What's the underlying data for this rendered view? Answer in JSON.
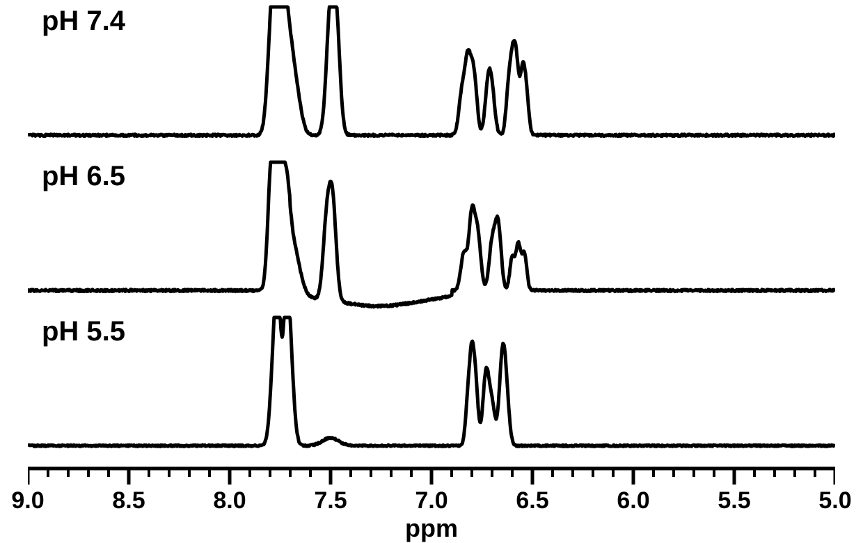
{
  "chart": {
    "type": "nmr-stacked-spectra",
    "background_color": "#ffffff",
    "line_color": "#000000",
    "line_width": 5,
    "label_fontsize": 40,
    "label_fontweight": "bold",
    "tick_fontsize": 34,
    "axis_title_fontsize": 36,
    "x_axis": {
      "label": "ppm",
      "min": 5.0,
      "max": 9.0,
      "ticks": [
        9.0,
        8.5,
        8.0,
        7.5,
        7.0,
        6.5,
        6.0,
        5.5,
        5.0
      ],
      "tick_labels": [
        "9.0",
        "8.5",
        "8.0",
        "7.5",
        "7.0",
        "6.5",
        "6.0",
        "5.5",
        "5.0"
      ],
      "minor_ticks_per_interval": 4
    },
    "spectra": [
      {
        "label": "pH 7.4",
        "baseline": 0.02,
        "noise": 0.015,
        "peaks": [
          {
            "ppm": 7.8,
            "h": 0.55,
            "w": 0.018
          },
          {
            "ppm": 7.78,
            "h": 0.8,
            "w": 0.015
          },
          {
            "ppm": 7.76,
            "h": 0.6,
            "w": 0.015
          },
          {
            "ppm": 7.73,
            "h": 0.88,
            "w": 0.018
          },
          {
            "ppm": 7.7,
            "h": 0.45,
            "w": 0.02
          },
          {
            "ppm": 7.67,
            "h": 0.3,
            "w": 0.025
          },
          {
            "ppm": 7.5,
            "h": 0.95,
            "w": 0.02
          },
          {
            "ppm": 7.47,
            "h": 0.7,
            "w": 0.018
          },
          {
            "ppm": 6.85,
            "h": 0.3,
            "w": 0.015
          },
          {
            "ppm": 6.82,
            "h": 0.55,
            "w": 0.015
          },
          {
            "ppm": 6.79,
            "h": 0.45,
            "w": 0.015
          },
          {
            "ppm": 6.72,
            "h": 0.35,
            "w": 0.015
          },
          {
            "ppm": 6.7,
            "h": 0.28,
            "w": 0.015
          },
          {
            "ppm": 6.62,
            "h": 0.3,
            "w": 0.012
          },
          {
            "ppm": 6.6,
            "h": 0.48,
            "w": 0.012
          },
          {
            "ppm": 6.58,
            "h": 0.52,
            "w": 0.012
          },
          {
            "ppm": 6.55,
            "h": 0.45,
            "w": 0.012
          },
          {
            "ppm": 6.53,
            "h": 0.3,
            "w": 0.012
          }
        ]
      },
      {
        "label": "pH 6.5",
        "baseline": 0.02,
        "noise": 0.015,
        "baseline_dip": {
          "from": 7.7,
          "to": 6.9,
          "depth": -0.08
        },
        "peaks": [
          {
            "ppm": 7.8,
            "h": 0.6,
            "w": 0.015
          },
          {
            "ppm": 7.78,
            "h": 0.78,
            "w": 0.015
          },
          {
            "ppm": 7.75,
            "h": 0.85,
            "w": 0.015
          },
          {
            "ppm": 7.72,
            "h": 0.55,
            "w": 0.018
          },
          {
            "ppm": 7.69,
            "h": 0.4,
            "w": 0.035,
            "shape": "shoulder"
          },
          {
            "ppm": 7.52,
            "h": 0.55,
            "w": 0.018
          },
          {
            "ppm": 7.49,
            "h": 0.72,
            "w": 0.018
          },
          {
            "ppm": 7.25,
            "h": -0.04,
            "w": 0.15
          },
          {
            "ppm": 6.84,
            "h": 0.28,
            "w": 0.015
          },
          {
            "ppm": 6.8,
            "h": 0.58,
            "w": 0.015
          },
          {
            "ppm": 6.77,
            "h": 0.4,
            "w": 0.015
          },
          {
            "ppm": 6.7,
            "h": 0.35,
            "w": 0.015
          },
          {
            "ppm": 6.67,
            "h": 0.5,
            "w": 0.015
          },
          {
            "ppm": 6.6,
            "h": 0.25,
            "w": 0.012
          },
          {
            "ppm": 6.57,
            "h": 0.35,
            "w": 0.012
          },
          {
            "ppm": 6.54,
            "h": 0.28,
            "w": 0.012
          }
        ]
      },
      {
        "label": "pH 5.5",
        "baseline": 0.02,
        "noise": 0.012,
        "peaks": [
          {
            "ppm": 7.78,
            "h": 0.62,
            "w": 0.018
          },
          {
            "ppm": 7.76,
            "h": 0.88,
            "w": 0.015
          },
          {
            "ppm": 7.72,
            "h": 0.9,
            "w": 0.015
          },
          {
            "ppm": 7.7,
            "h": 0.6,
            "w": 0.018
          },
          {
            "ppm": 7.5,
            "h": 0.06,
            "w": 0.04
          },
          {
            "ppm": 6.82,
            "h": 0.3,
            "w": 0.012
          },
          {
            "ppm": 6.8,
            "h": 0.62,
            "w": 0.012
          },
          {
            "ppm": 6.78,
            "h": 0.4,
            "w": 0.012
          },
          {
            "ppm": 6.73,
            "h": 0.55,
            "w": 0.015
          },
          {
            "ppm": 6.7,
            "h": 0.3,
            "w": 0.015
          },
          {
            "ppm": 6.65,
            "h": 0.6,
            "w": 0.015
          },
          {
            "ppm": 6.63,
            "h": 0.35,
            "w": 0.015
          }
        ]
      }
    ]
  }
}
